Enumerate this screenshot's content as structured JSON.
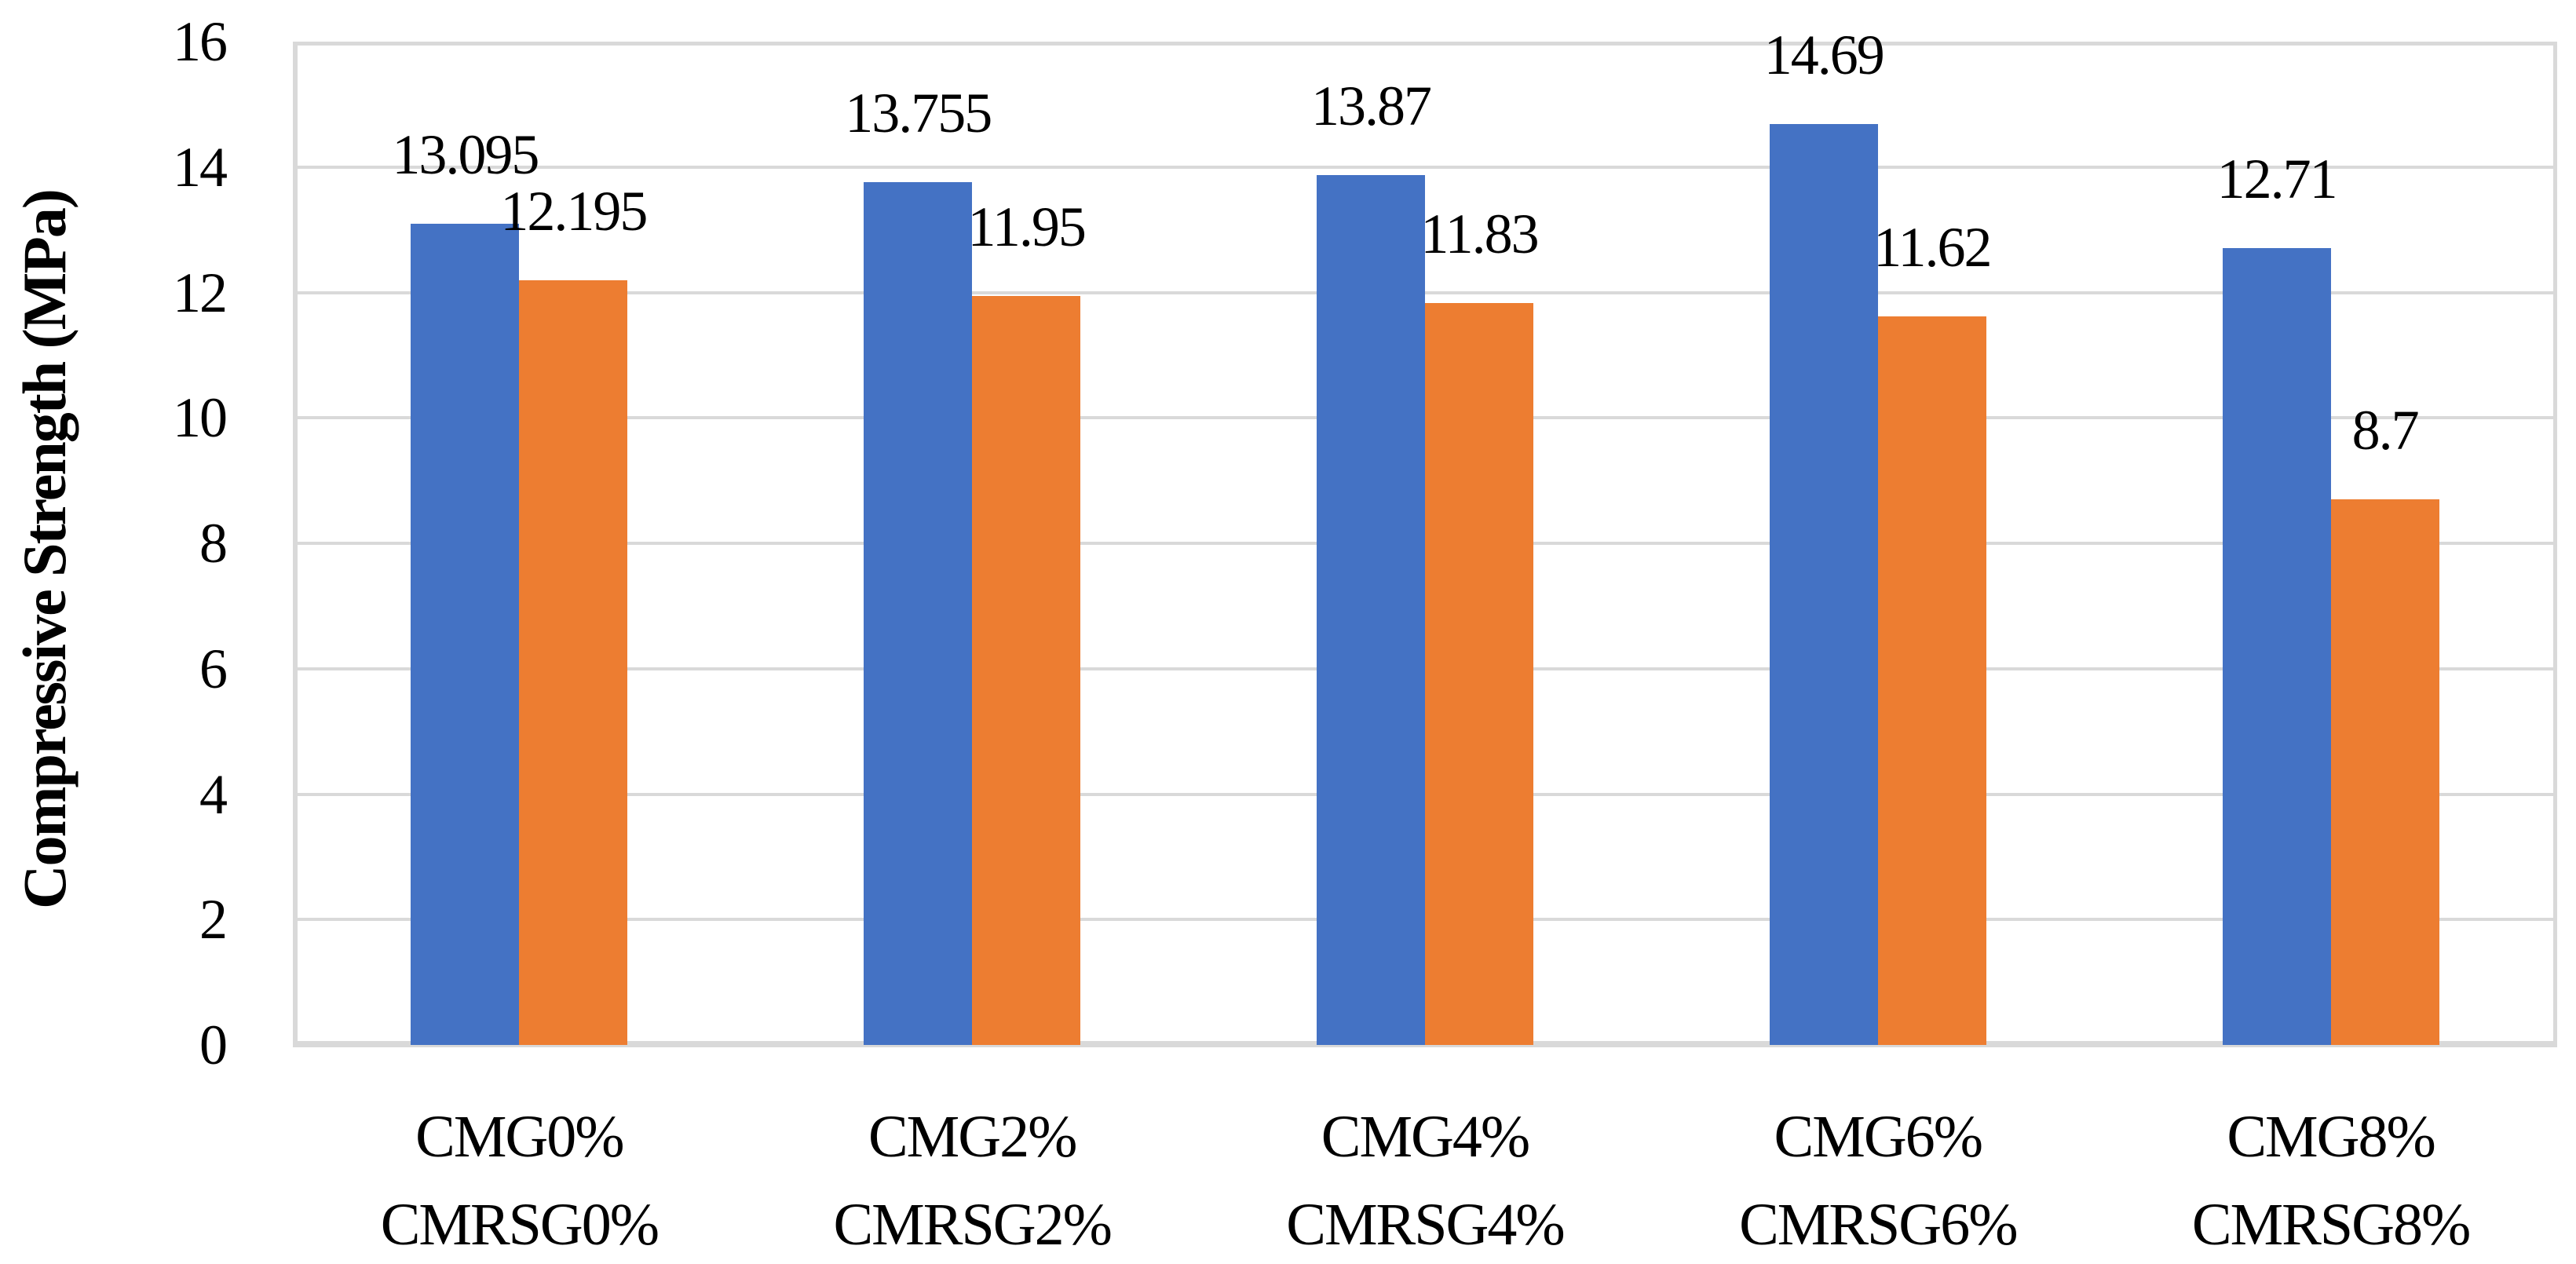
{
  "chart_data": {
    "type": "bar",
    "ylabel": "Compressive Strength (MPa)",
    "categories": [
      [
        "CMG0%",
        "CMRSG0%"
      ],
      [
        "CMG2%",
        "CMRSG2%"
      ],
      [
        "CMG4%",
        "CMRSG4%"
      ],
      [
        "CMG6%",
        "CMRSG6%"
      ],
      [
        "CMG8%",
        "CMRSG8%"
      ]
    ],
    "series": [
      {
        "id": "blue-series",
        "color": "#4472C4",
        "values": [
          13.095,
          13.755,
          13.87,
          14.69,
          12.71
        ],
        "data_labels": [
          "13.095",
          "13.755",
          "13.87",
          "14.69",
          "12.71"
        ]
      },
      {
        "id": "orange-series",
        "color": "#ED7D31",
        "values": [
          12.195,
          11.95,
          11.83,
          11.62,
          8.7
        ],
        "data_labels": [
          "12.195",
          "11.95",
          "11.83",
          "11.62",
          "8.7"
        ]
      }
    ],
    "yticks": [
      "0",
      "2",
      "4",
      "6",
      "8",
      "10",
      "12",
      "14",
      "16"
    ],
    "ylim": [
      0,
      16
    ],
    "grid": true,
    "legend": false,
    "axis_color": "#D9D9D9",
    "text_color": "#000000"
  }
}
